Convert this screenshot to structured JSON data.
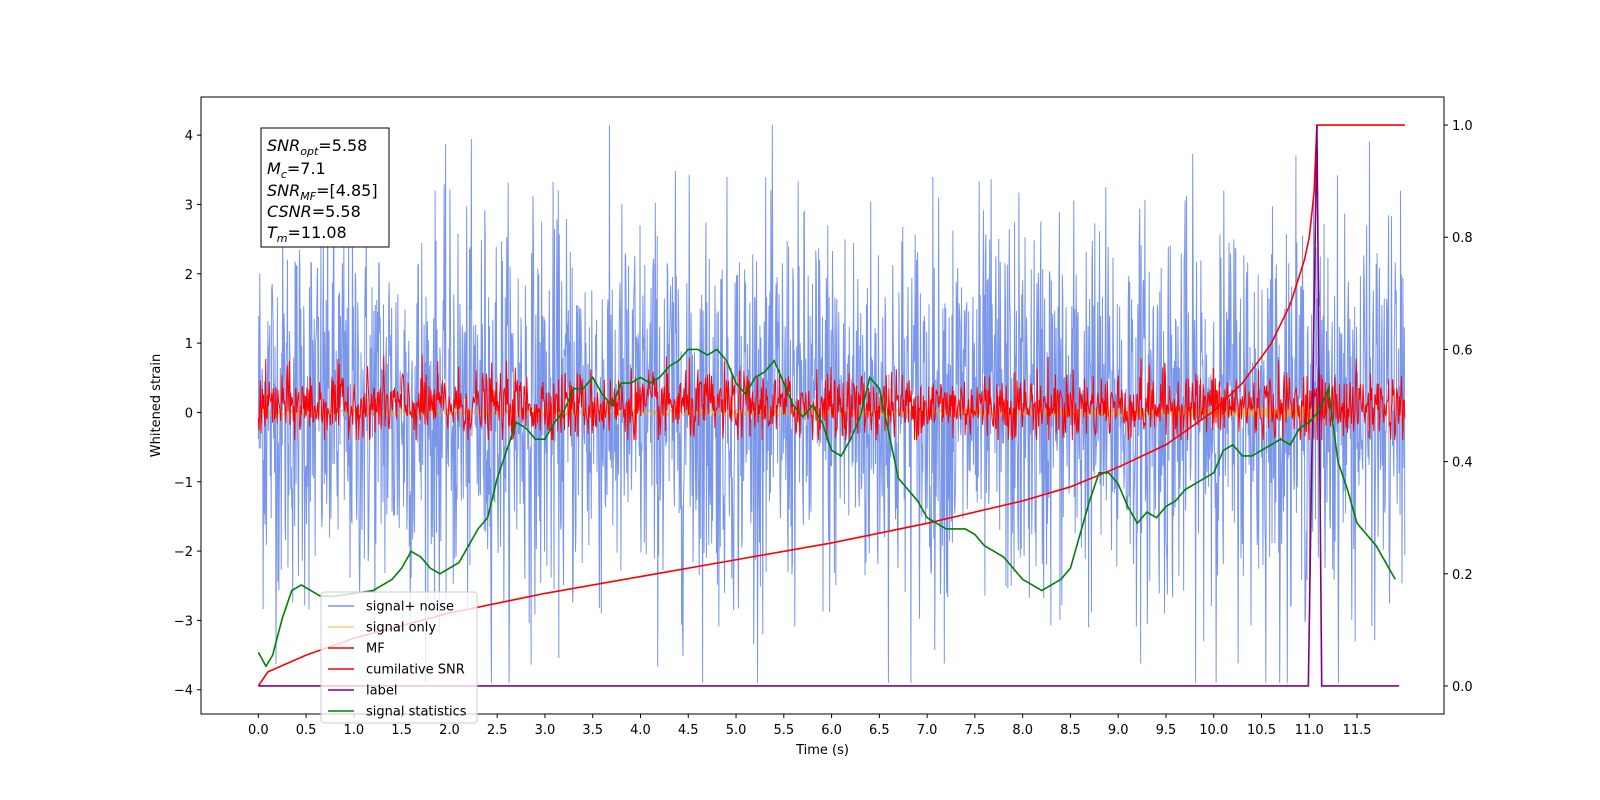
{
  "chart_data": {
    "type": "line",
    "xlabel": "Time (s)",
    "ylabel": "Whitened strain",
    "xlim": [
      -0.6,
      12.41
    ],
    "ylim": [
      -4.35,
      4.55
    ],
    "ylim_right": [
      -0.05,
      1.05
    ],
    "x_ticks": [
      "0.0",
      "0.5",
      "1.0",
      "1.5",
      "2.0",
      "2.5",
      "3.0",
      "3.5",
      "4.0",
      "4.5",
      "5.0",
      "5.5",
      "6.0",
      "6.5",
      "7.0",
      "7.5",
      "8.0",
      "8.5",
      "9.0",
      "9.5",
      "10.0",
      "10.5",
      "11.0",
      "11.5"
    ],
    "y_ticks_left": [
      "4",
      "3",
      "2",
      "1",
      "0",
      "−1",
      "−2",
      "−3",
      "−4"
    ],
    "y_ticks_right": [
      "1.0",
      "0.8",
      "0.6",
      "0.4",
      "0.2",
      "0.0"
    ],
    "grid": false,
    "legend_position": "lower-left",
    "annotation": {
      "lines": [
        {
          "base": "SNR",
          "sub": "opt",
          "rest": "=5.58"
        },
        {
          "base": "M",
          "sub": "c",
          "rest": "=7.1"
        },
        {
          "base": "SNR",
          "sub": "MF",
          "rest": "=[4.85]"
        },
        {
          "base": "CSNR",
          "sub": "",
          "rest": "=5.58"
        },
        {
          "base": "T",
          "sub": "m",
          "rest": "=11.08"
        }
      ]
    },
    "series": [
      {
        "name": "signal+ noise",
        "color": "#4169e1",
        "axis": "left",
        "kind": "noise",
        "x_range": [
          0,
          12.0
        ],
        "typical_range": [
          -2.5,
          2.6
        ],
        "extremes": [
          -3.9,
          4.15
        ]
      },
      {
        "name": "signal only",
        "color": "#f5a623",
        "axis": "left",
        "kind": "chirp",
        "x_range": [
          0,
          11.08
        ],
        "peak_amplitude": 0.3
      },
      {
        "name": "MF",
        "color": "#ff0000",
        "axis": "left",
        "kind": "noise",
        "x_range": [
          0,
          12.0
        ],
        "typical_range": [
          -0.35,
          0.55
        ],
        "extremes": [
          -0.4,
          1.0
        ]
      },
      {
        "name": "cumilative SNR",
        "color": "#ff0000",
        "axis": "right",
        "x": [
          0,
          0.1,
          0.5,
          1.0,
          2.0,
          3.0,
          4.0,
          5.0,
          6.0,
          7.0,
          8.0,
          8.5,
          9.0,
          9.5,
          10.0,
          10.3,
          10.6,
          10.8,
          10.95,
          11.0,
          11.05,
          11.08,
          12.0
        ],
        "y": [
          0.0,
          0.025,
          0.055,
          0.085,
          0.13,
          0.165,
          0.195,
          0.225,
          0.255,
          0.29,
          0.33,
          0.355,
          0.39,
          0.43,
          0.49,
          0.54,
          0.61,
          0.68,
          0.76,
          0.8,
          0.88,
          1.0,
          1.0
        ]
      },
      {
        "name": "label",
        "color": "#800080",
        "axis": "right",
        "x": [
          0,
          10.99,
          11.08,
          11.13,
          11.94
        ],
        "y": [
          0,
          0,
          1.0,
          0,
          0
        ]
      },
      {
        "name": "signal statistics",
        "color": "#008000",
        "axis": "right",
        "x": [
          0,
          0.08,
          0.15,
          0.25,
          0.35,
          0.45,
          0.55,
          0.65,
          0.8,
          1.0,
          1.2,
          1.4,
          1.5,
          1.6,
          1.7,
          1.8,
          1.9,
          2.0,
          2.1,
          2.2,
          2.3,
          2.4,
          2.5,
          2.6,
          2.7,
          2.8,
          2.9,
          3.0,
          3.1,
          3.2,
          3.3,
          3.4,
          3.5,
          3.6,
          3.7,
          3.8,
          3.9,
          4.0,
          4.1,
          4.2,
          4.3,
          4.4,
          4.5,
          4.6,
          4.7,
          4.8,
          4.9,
          5.0,
          5.1,
          5.2,
          5.3,
          5.4,
          5.5,
          5.6,
          5.7,
          5.8,
          5.9,
          6.0,
          6.1,
          6.2,
          6.3,
          6.4,
          6.5,
          6.6,
          6.7,
          6.8,
          6.9,
          7.0,
          7.1,
          7.2,
          7.3,
          7.4,
          7.5,
          7.6,
          7.7,
          7.8,
          7.9,
          8.0,
          8.1,
          8.2,
          8.3,
          8.4,
          8.5,
          8.6,
          8.7,
          8.8,
          8.9,
          9.0,
          9.1,
          9.2,
          9.3,
          9.4,
          9.5,
          9.6,
          9.7,
          9.8,
          9.9,
          10.0,
          10.1,
          10.2,
          10.3,
          10.4,
          10.5,
          10.6,
          10.7,
          10.8,
          10.9,
          11.0,
          11.1,
          11.2,
          11.3,
          11.4,
          11.5,
          11.6,
          11.7,
          11.8,
          11.9
        ],
        "y": [
          0.06,
          0.035,
          0.055,
          0.12,
          0.17,
          0.18,
          0.17,
          0.16,
          0.16,
          0.165,
          0.17,
          0.19,
          0.21,
          0.24,
          0.23,
          0.21,
          0.2,
          0.21,
          0.22,
          0.25,
          0.28,
          0.3,
          0.37,
          0.42,
          0.47,
          0.46,
          0.44,
          0.44,
          0.47,
          0.49,
          0.53,
          0.53,
          0.55,
          0.52,
          0.5,
          0.54,
          0.54,
          0.55,
          0.54,
          0.55,
          0.57,
          0.58,
          0.6,
          0.6,
          0.59,
          0.6,
          0.58,
          0.54,
          0.52,
          0.55,
          0.56,
          0.58,
          0.54,
          0.5,
          0.48,
          0.5,
          0.47,
          0.42,
          0.41,
          0.44,
          0.48,
          0.55,
          0.53,
          0.45,
          0.37,
          0.35,
          0.33,
          0.3,
          0.29,
          0.28,
          0.28,
          0.28,
          0.27,
          0.25,
          0.24,
          0.23,
          0.21,
          0.19,
          0.18,
          0.17,
          0.18,
          0.19,
          0.21,
          0.27,
          0.33,
          0.38,
          0.38,
          0.36,
          0.32,
          0.29,
          0.31,
          0.3,
          0.32,
          0.33,
          0.35,
          0.36,
          0.37,
          0.38,
          0.42,
          0.43,
          0.41,
          0.41,
          0.42,
          0.43,
          0.44,
          0.43,
          0.46,
          0.47,
          0.49,
          0.53,
          0.4,
          0.35,
          0.29,
          0.27,
          0.25,
          0.22,
          0.19
        ]
      }
    ]
  }
}
